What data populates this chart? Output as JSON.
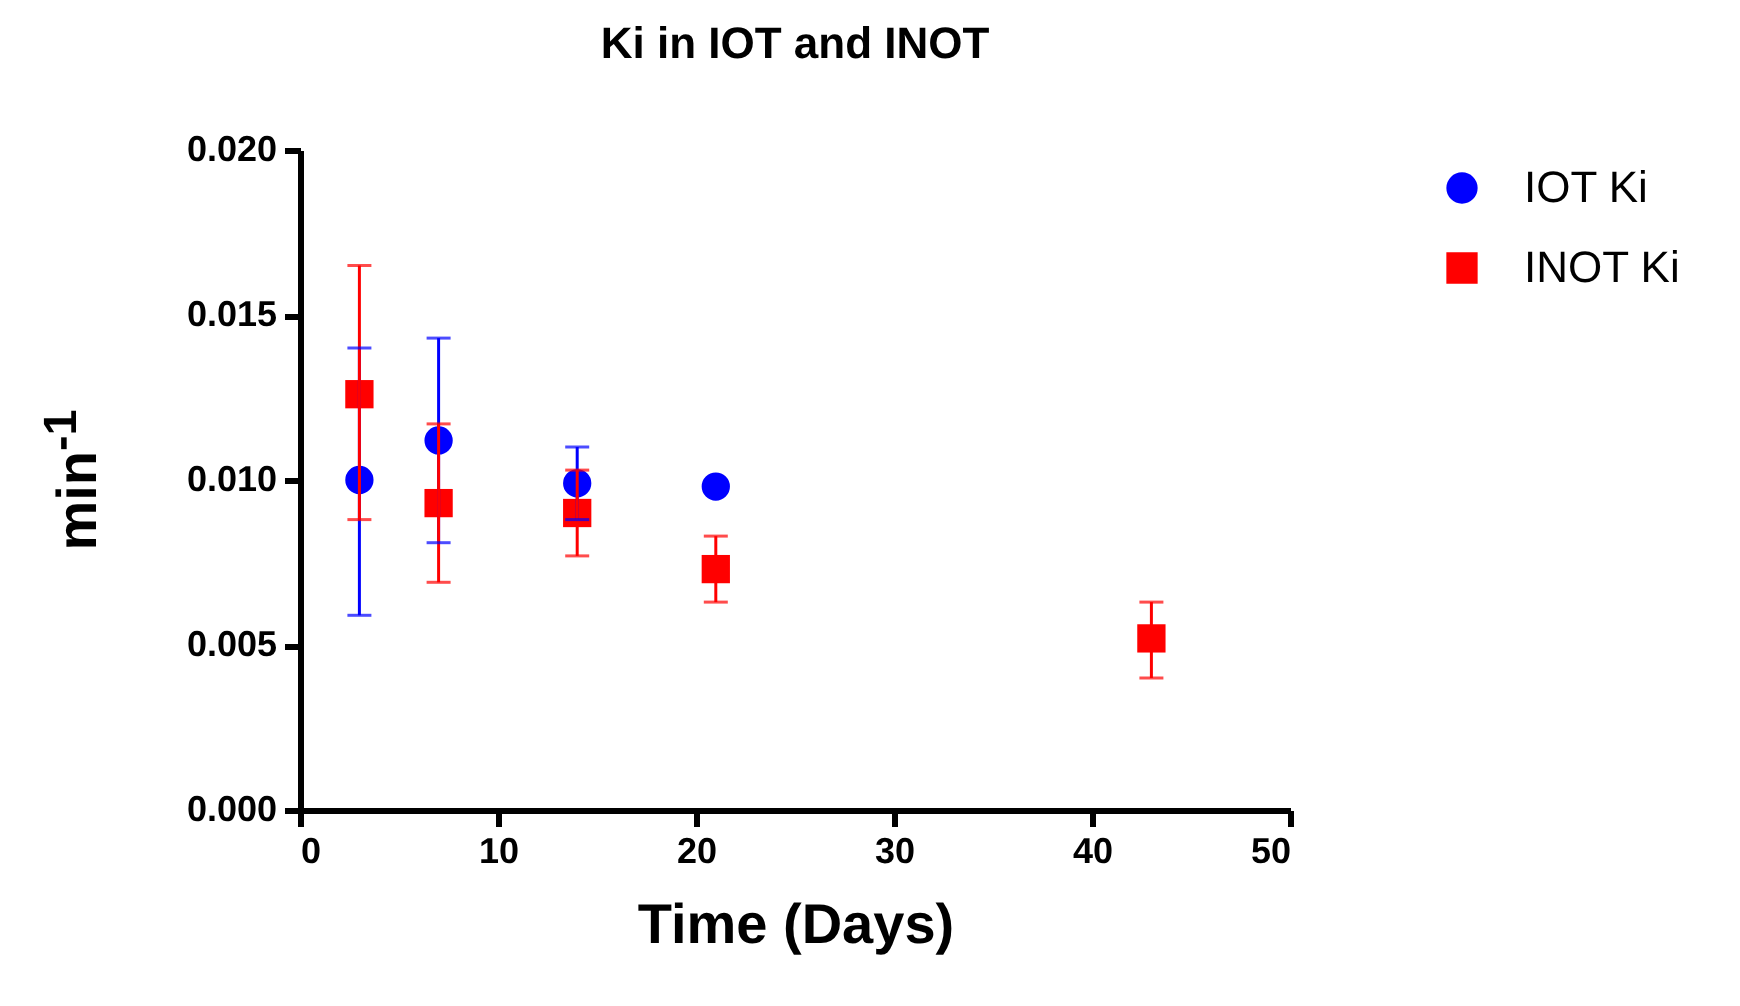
{
  "chart_data": {
    "type": "scatter",
    "title": "Ki in IOT and  INOT",
    "xlabel": "Time  (Days)",
    "ylabel": "min$^{-1}$",
    "legend": "top right",
    "xlim": [
      0,
      50
    ],
    "xticks": [
      0,
      10,
      20,
      30,
      40,
      50
    ],
    "ylim": [
      0,
      0.02
    ],
    "yticks": [
      {
        "value": 0,
        "label": "0.000"
      },
      {
        "value": 0.005,
        "label": "0.005"
      },
      {
        "value": 0.01,
        "label": "0.010"
      },
      {
        "value": 0.015,
        "label": "0.015"
      },
      {
        "value": 0.02,
        "label": "0.020"
      }
    ],
    "series": [
      {
        "name": "IOT Ki",
        "color": "#0000ff",
        "marker": "circle",
        "x": [
          3,
          7,
          14,
          21
        ],
        "values": [
          0.01,
          0.0112,
          0.0099,
          0.0098
        ],
        "errors": [
          [
            0.0059,
            0.014
          ],
          [
            0.0081,
            0.0143
          ],
          [
            0.0088,
            0.011
          ],
          null
        ]
      },
      {
        "name": "INOT Ki",
        "color": "#ff0000",
        "marker": "square",
        "x": [
          3,
          7,
          14,
          21,
          43
        ],
        "values": [
          0.0126,
          0.0093,
          0.009,
          0.0073,
          0.0052
        ],
        "errors": [
          [
            0.0088,
            0.0165
          ],
          [
            0.0069,
            0.0117
          ],
          [
            0.0077,
            0.0103
          ],
          [
            0.0063,
            0.0083
          ],
          [
            0.004,
            0.0063
          ]
        ]
      }
    ]
  }
}
